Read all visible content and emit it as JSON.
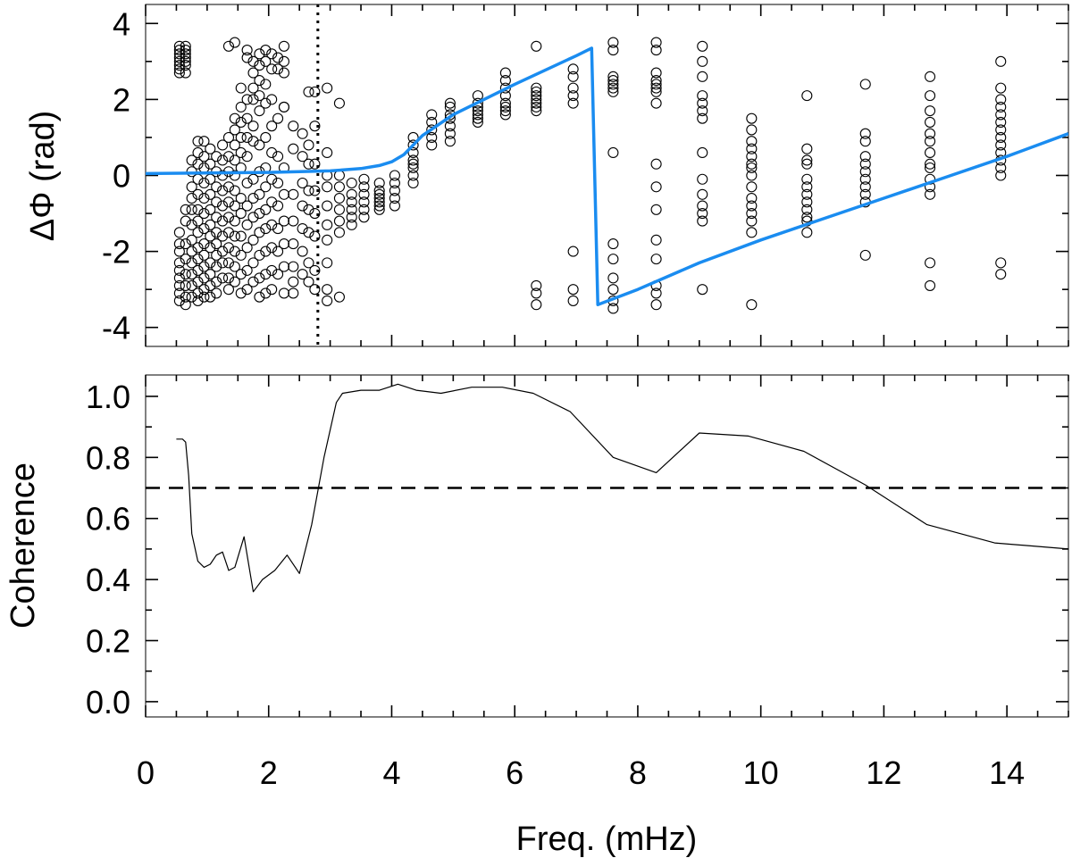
{
  "figure": {
    "xlabel": "Freq. (mHz)"
  },
  "chart_data": [
    {
      "type": "scatter",
      "ylabel": "ΔΦ (rad)",
      "xlim": [
        0,
        15
      ],
      "ylim": [
        -4.5,
        4.5
      ],
      "x_ticks": [
        0,
        2,
        4,
        6,
        8,
        10,
        12,
        14
      ],
      "y_ticks": [
        -4,
        -2,
        0,
        2,
        4
      ],
      "y_tick_labels": [
        "-4",
        "-2",
        "0",
        "2",
        "4"
      ],
      "vline": {
        "x": 2.8,
        "style": "dotted"
      },
      "series": [
        {
          "kind": "points",
          "marker": "open-circle",
          "columns": [
            {
              "x": 0.55,
              "y": [
                3.4,
                3.3,
                3.2,
                3.1,
                3.0,
                2.9,
                2.8,
                2.7,
                -1.5,
                -1.8,
                -2.0,
                -2.3,
                -2.5,
                -2.7,
                -2.9,
                -3.1,
                -3.3
              ]
            },
            {
              "x": 0.65,
              "y": [
                3.4,
                3.3,
                3.2,
                3.1,
                3.0,
                2.9,
                2.7,
                -0.9,
                -1.2,
                -1.8,
                -2.2,
                -2.6,
                -2.9,
                -3.2,
                -3.4
              ]
            },
            {
              "x": 0.75,
              "y": [
                0.4,
                0.1,
                -0.3,
                -0.6,
                -0.9,
                -1.3,
                -1.7,
                -2.0,
                -2.3,
                -2.6,
                -2.9,
                -3.2
              ]
            },
            {
              "x": 0.85,
              "y": [
                0.9,
                0.6,
                0.3,
                -0.1,
                -0.5,
                -0.9,
                -1.2,
                -1.5,
                -1.9,
                -2.2,
                -2.5,
                -2.8,
                -3.1,
                -3.3
              ]
            },
            {
              "x": 0.95,
              "y": [
                0.9,
                0.5,
                0.2,
                -0.2,
                -0.6,
                -1.0,
                -1.4,
                -1.8,
                -2.1,
                -2.4,
                -2.7,
                -3.0,
                -3.2
              ]
            },
            {
              "x": 1.05,
              "y": [
                0.7,
                0.3,
                -0.1,
                -0.5,
                -0.9,
                -1.3,
                -1.6,
                -1.9,
                -2.3,
                -2.6,
                -2.9,
                -3.2
              ]
            },
            {
              "x": 1.15,
              "y": [
                0.5,
                0.1,
                -0.3,
                -0.7,
                -1.1,
                -1.5,
                -1.8,
                -2.1,
                -2.4,
                -2.8,
                -3.1
              ]
            },
            {
              "x": 1.25,
              "y": [
                0.8,
                0.4,
                0.0,
                -0.4,
                -0.8,
                -1.2,
                -1.6,
                -2.0,
                -2.3,
                -2.7
              ]
            },
            {
              "x": 1.35,
              "y": [
                3.4,
                1.0,
                0.5,
                0.1,
                -0.3,
                -0.7,
                -1.1,
                -1.5,
                -1.9,
                -2.3,
                -2.7,
                -3.0
              ]
            },
            {
              "x": 1.45,
              "y": [
                3.5,
                1.5,
                1.2,
                0.8,
                0.4,
                0.0,
                -0.4,
                -0.8,
                -1.2,
                -1.6,
                -2.0,
                -2.4,
                -2.8
              ]
            },
            {
              "x": 1.55,
              "y": [
                2.3,
                1.8,
                1.4,
                1.0,
                0.6,
                0.2,
                -0.6,
                -1.0,
                -1.6,
                -2.1,
                -2.6,
                -3.1
              ]
            },
            {
              "x": 1.65,
              "y": [
                3.3,
                3.1,
                2.0,
                1.5,
                1.0,
                0.5,
                -0.2,
                -0.8,
                -1.3,
                -1.9,
                -2.5,
                -3.0
              ]
            },
            {
              "x": 1.75,
              "y": [
                3.0,
                2.7,
                2.3,
                2.0,
                1.3,
                0.9,
                -0.1,
                -0.6,
                -1.1,
                -1.7,
                -2.3,
                -2.8
              ]
            },
            {
              "x": 1.85,
              "y": [
                3.2,
                2.9,
                2.5,
                2.1,
                1.7,
                0.8,
                0.1,
                -0.5,
                -1.0,
                -1.5,
                -2.1,
                -2.7,
                -3.2
              ]
            },
            {
              "x": 1.95,
              "y": [
                3.3,
                3.0,
                2.4,
                1.9,
                1.0,
                0.2,
                -0.3,
                -0.9,
                -1.4,
                -2.0,
                -2.6,
                -3.1
              ]
            },
            {
              "x": 2.05,
              "y": [
                3.2,
                2.8,
                2.0,
                1.3,
                0.6,
                -0.1,
                -0.7,
                -1.3,
                -1.9,
                -2.5,
                -3.0
              ]
            },
            {
              "x": 2.15,
              "y": [
                3.1,
                2.8,
                1.5,
                0.5,
                -0.2,
                -0.8,
                -1.4,
                -2.0,
                -2.6
              ]
            },
            {
              "x": 2.25,
              "y": [
                3.4,
                3.0,
                2.7,
                1.8,
                1.8,
                0.2,
                -0.5,
                -1.2,
                -1.8,
                -2.4,
                -3.1
              ]
            },
            {
              "x": 2.4,
              "y": [
                1.3,
                0.7,
                -0.5,
                -1.2,
                -1.8,
                -2.4,
                -2.8,
                -3.1
              ]
            },
            {
              "x": 2.55,
              "y": [
                1.1,
                0.5,
                -0.2,
                -0.8,
                -1.4,
                -2.0,
                -2.6
              ]
            },
            {
              "x": 2.65,
              "y": [
                2.2,
                0.8,
                0.3,
                -0.4,
                -0.9,
                -1.5,
                -2.3,
                -2.8
              ]
            },
            {
              "x": 2.75,
              "y": [
                2.2,
                1.3,
                0.3,
                -0.4,
                -1.0,
                -1.6,
                -2.5,
                -3.0
              ]
            },
            {
              "x": 2.95,
              "y": [
                2.3,
                0.6,
                0.0,
                -0.3,
                -0.8,
                -1.3,
                -1.7,
                -2.3,
                -3.0,
                -3.3
              ]
            },
            {
              "x": 3.15,
              "y": [
                1.9,
                0.0,
                -0.3,
                -0.6,
                -0.9,
                -1.2,
                -1.5,
                -3.2
              ]
            },
            {
              "x": 3.35,
              "y": [
                -0.2,
                -0.5,
                -0.7,
                -0.9,
                -1.1,
                -1.3
              ]
            },
            {
              "x": 3.55,
              "y": [
                -0.1,
                -0.3,
                -0.5,
                -0.7,
                -0.9,
                -1.1
              ]
            },
            {
              "x": 3.8,
              "y": [
                -0.2,
                -0.4,
                -0.5,
                -0.6,
                -0.7,
                -0.8,
                -0.9
              ]
            },
            {
              "x": 4.05,
              "y": [
                0.0,
                -0.2,
                -0.4,
                -0.6,
                -0.8
              ]
            },
            {
              "x": 4.35,
              "y": [
                1.0,
                0.8,
                0.6,
                0.4,
                0.3,
                0.2,
                0.0,
                -0.2
              ]
            },
            {
              "x": 4.65,
              "y": [
                1.6,
                1.4,
                1.2,
                1.0,
                0.8
              ]
            },
            {
              "x": 4.95,
              "y": [
                1.9,
                1.8,
                1.6,
                1.5,
                1.3,
                1.1,
                0.9
              ]
            },
            {
              "x": 5.4,
              "y": [
                2.1,
                1.9,
                1.8,
                1.7,
                1.6,
                1.5,
                1.4
              ]
            },
            {
              "x": 5.85,
              "y": [
                2.7,
                2.5,
                2.3,
                2.1,
                1.9,
                1.8,
                1.7,
                1.6
              ]
            },
            {
              "x": 6.35,
              "y": [
                3.4,
                2.3,
                2.2,
                2.1,
                2.0,
                1.9,
                1.8,
                1.7,
                -2.9,
                -3.1,
                -3.4
              ]
            },
            {
              "x": 6.95,
              "y": [
                2.8,
                2.6,
                2.3,
                2.1,
                1.9,
                -2.0,
                -3.0,
                -3.3
              ]
            },
            {
              "x": 7.6,
              "y": [
                3.5,
                3.3,
                2.6,
                2.5,
                2.4,
                2.3,
                2.2,
                0.6,
                -1.8,
                -2.2,
                -2.7,
                -3.0,
                -3.3,
                -3.5
              ]
            },
            {
              "x": 8.3,
              "y": [
                3.5,
                3.3,
                2.7,
                2.5,
                2.4,
                2.3,
                2.2,
                1.9,
                0.3,
                -0.3,
                -0.9,
                -1.7,
                -2.2,
                -2.9,
                -3.1,
                -3.4
              ]
            },
            {
              "x": 9.05,
              "y": [
                3.4,
                3.0,
                2.6,
                2.1,
                1.9,
                1.7,
                1.5,
                0.6,
                -0.1,
                -0.5,
                -0.8,
                -1.0,
                -1.2,
                -3.0
              ]
            },
            {
              "x": 9.85,
              "y": [
                1.5,
                1.2,
                0.9,
                0.7,
                0.5,
                0.3,
                0.2,
                0.0,
                -0.3,
                -0.6,
                -0.8,
                -1.0,
                -1.2,
                -1.5,
                -3.4
              ]
            },
            {
              "x": 10.75,
              "y": [
                2.1,
                0.7,
                0.4,
                0.3,
                -0.1,
                -0.3,
                -0.5,
                -0.7,
                -0.9,
                -1.1,
                -1.2,
                -1.5
              ]
            },
            {
              "x": 11.7,
              "y": [
                2.4,
                1.1,
                0.9,
                0.5,
                0.3,
                0.1,
                -0.1,
                -0.3,
                -0.5,
                -0.7,
                -2.1
              ]
            },
            {
              "x": 12.75,
              "y": [
                2.6,
                2.1,
                1.7,
                1.4,
                1.1,
                0.9,
                0.6,
                0.3,
                0.2,
                -0.1,
                -0.3,
                -0.5,
                -2.3,
                -2.9
              ]
            },
            {
              "x": 13.9,
              "y": [
                3.0,
                2.3,
                2.0,
                1.8,
                1.6,
                1.4,
                1.2,
                1.0,
                0.8,
                0.6,
                0.4,
                0.2,
                0.0,
                -2.3,
                -2.6
              ]
            }
          ]
        },
        {
          "kind": "line",
          "color": "#1a8cf0",
          "x": [
            0.0,
            2.0,
            3.0,
            3.5,
            3.8,
            4.0,
            4.2,
            4.5,
            5.0,
            6.0,
            7.0,
            7.25,
            7.35,
            8.0,
            9.0,
            10.0,
            11.0,
            12.0,
            13.0,
            14.0,
            15.0
          ],
          "y": [
            0.05,
            0.08,
            0.12,
            0.18,
            0.26,
            0.36,
            0.55,
            1.05,
            1.6,
            2.4,
            3.15,
            3.35,
            -3.4,
            -3.0,
            -2.3,
            -1.7,
            -1.15,
            -0.6,
            -0.05,
            0.5,
            1.1
          ]
        }
      ]
    },
    {
      "type": "line",
      "ylabel": "Coherence",
      "xlim": [
        0,
        15
      ],
      "ylim": [
        -0.05,
        1.07
      ],
      "x_ticks": [
        0,
        2,
        4,
        6,
        8,
        10,
        12,
        14
      ],
      "x_tick_labels": [
        "0",
        "2",
        "4",
        "6",
        "8",
        "10",
        "12",
        "14"
      ],
      "y_ticks": [
        0.0,
        0.2,
        0.4,
        0.6,
        0.8,
        1.0
      ],
      "y_tick_labels": [
        "0.0",
        "0.2",
        "0.4",
        "0.6",
        "0.8",
        "1.0"
      ],
      "hline": {
        "y": 0.7,
        "style": "dashed"
      },
      "series": [
        {
          "kind": "line",
          "color": "#000000",
          "x": [
            0.5,
            0.6,
            0.65,
            0.7,
            0.75,
            0.85,
            0.95,
            1.05,
            1.15,
            1.25,
            1.35,
            1.45,
            1.6,
            1.75,
            1.9,
            2.1,
            2.3,
            2.5,
            2.7,
            2.9,
            3.1,
            3.2,
            3.5,
            3.8,
            4.1,
            4.4,
            4.8,
            5.3,
            5.8,
            6.3,
            6.9,
            7.6,
            8.3,
            9.0,
            9.8,
            10.7,
            11.7,
            12.7,
            13.8,
            15.0
          ],
          "y": [
            0.86,
            0.86,
            0.85,
            0.74,
            0.55,
            0.46,
            0.44,
            0.45,
            0.48,
            0.49,
            0.43,
            0.44,
            0.54,
            0.36,
            0.4,
            0.43,
            0.48,
            0.42,
            0.58,
            0.8,
            0.98,
            1.01,
            1.02,
            1.02,
            1.04,
            1.02,
            1.01,
            1.03,
            1.03,
            1.01,
            0.95,
            0.8,
            0.75,
            0.88,
            0.87,
            0.82,
            0.71,
            0.58,
            0.52,
            0.5
          ]
        }
      ]
    }
  ]
}
